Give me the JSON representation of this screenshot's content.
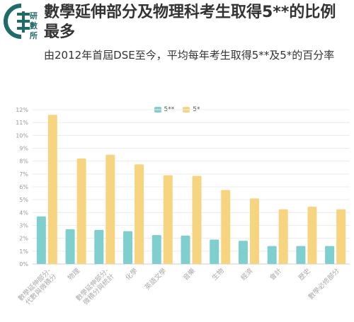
{
  "header": {
    "title": "數學延伸部分及物理科考生取得5**的比例最多",
    "subtitle": "由2012年首屆DSE至今，平均每年考生取得5**及5*的百分率"
  },
  "colors": {
    "series_5ss": "#7ecfce",
    "series_5s": "#f7d480",
    "brand": "#1e6b68"
  },
  "chart_data": {
    "type": "bar",
    "title": "數學延伸部分及物理科考生取得5**的比例最多",
    "subtitle": "由2012年首屆DSE至今，平均每年考生取得5**及5*的百分率",
    "xlabel": "",
    "ylabel": "",
    "ylim": [
      0,
      12
    ],
    "y_ticks": [
      "0%",
      "1%",
      "2%",
      "3%",
      "4%",
      "5%",
      "6%",
      "7%",
      "8%",
      "9%",
      "10%",
      "11%",
      "12%"
    ],
    "grid": true,
    "legend_position": "top",
    "categories": [
      [
        "數學延伸部分-",
        "代數與微積分"
      ],
      [
        "物理"
      ],
      [
        "數學延伸部分-",
        "微積分與統計"
      ],
      [
        "化學"
      ],
      [
        "英語文學"
      ],
      [
        "音樂"
      ],
      [
        "生物"
      ],
      [
        "經濟"
      ],
      [
        "會計"
      ],
      [
        "歷史"
      ],
      [
        "數學必修部分"
      ]
    ],
    "series": [
      {
        "name": "5**",
        "values": [
          3.7,
          2.7,
          2.65,
          2.55,
          2.25,
          2.2,
          1.9,
          1.8,
          1.4,
          1.4,
          1.4
        ]
      },
      {
        "name": "5*",
        "values": [
          11.6,
          8.2,
          8.5,
          7.75,
          6.9,
          6.85,
          5.75,
          5.1,
          4.25,
          4.45,
          4.25
        ]
      }
    ]
  }
}
